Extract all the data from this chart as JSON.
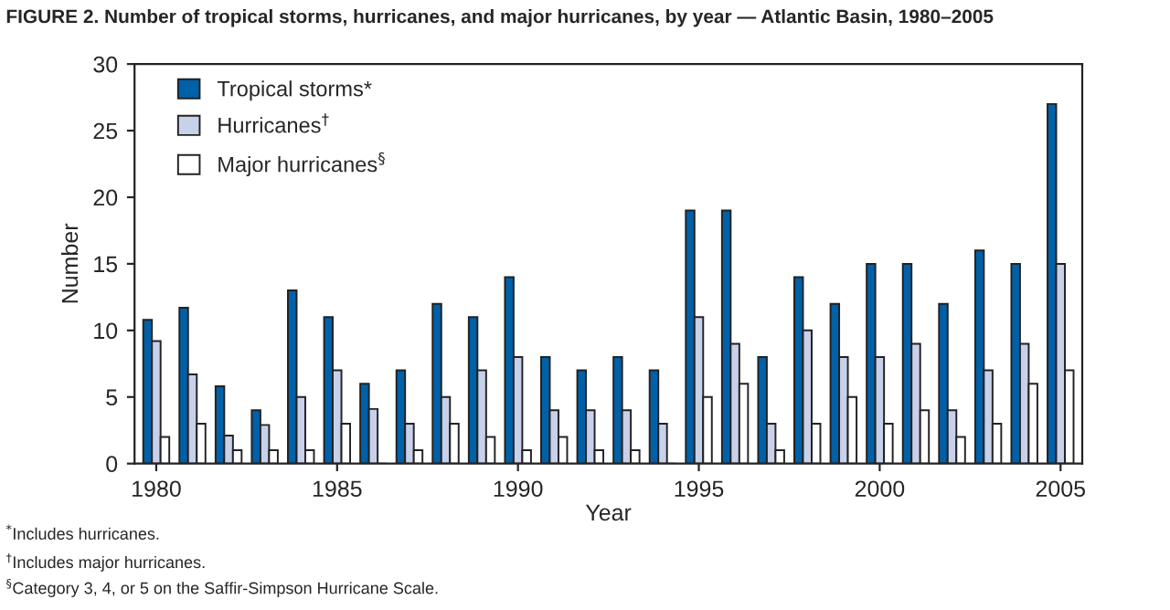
{
  "chart_data": {
    "type": "bar",
    "title": "FIGURE 2. Number of tropical storms, hurricanes, and major hurricanes, by year — Atlantic Basin, 1980–2005",
    "xlabel": "Year",
    "ylabel": "Number",
    "x": [
      1980,
      1981,
      1982,
      1983,
      1984,
      1985,
      1986,
      1987,
      1988,
      1989,
      1990,
      1991,
      1992,
      1993,
      1994,
      1995,
      1996,
      1997,
      1998,
      1999,
      2000,
      2001,
      2002,
      2003,
      2004,
      2005
    ],
    "series": [
      {
        "name": "Tropical storms*",
        "color": "#0060a8",
        "values": [
          10.8,
          11.7,
          5.8,
          4,
          13,
          11,
          6,
          7,
          12,
          11,
          14,
          8,
          7,
          8,
          7,
          19,
          19,
          8,
          14,
          12,
          15,
          15,
          12,
          16,
          15,
          27
        ]
      },
      {
        "name": "Hurricanes$^{†}$",
        "color": "#c8d0ea",
        "values": [
          9.2,
          6.7,
          2.1,
          2.9,
          5,
          7,
          4.1,
          3,
          5,
          7,
          8,
          4,
          4,
          4,
          3,
          11,
          9,
          3,
          10,
          8,
          8,
          9,
          4,
          7,
          9,
          15
        ]
      },
      {
        "name": "Major hurricanes$^{§}$",
        "color": "#ffffff",
        "values": [
          2,
          3,
          1,
          1,
          1,
          3,
          0,
          1,
          3,
          2,
          1,
          2,
          1,
          1,
          0,
          5,
          6,
          1,
          3,
          5,
          3,
          4,
          2,
          3,
          6,
          7
        ]
      }
    ],
    "xlim": [
      1979.4,
      2005.6
    ],
    "xticks": [
      1980,
      1985,
      1990,
      1995,
      2000,
      2005
    ],
    "ylim": [
      0,
      30
    ],
    "yticks": [
      0,
      5,
      10,
      15,
      20,
      25,
      30
    ],
    "grid": false,
    "legend": "top left",
    "annotations": [
      "$^{*}$Includes hurricanes.",
      "$^{†}$Includes major hurricanes.",
      "$^{§}$Category 3, 4, or 5 on the Saffir-Simpson Hurricane Scale."
    ]
  }
}
